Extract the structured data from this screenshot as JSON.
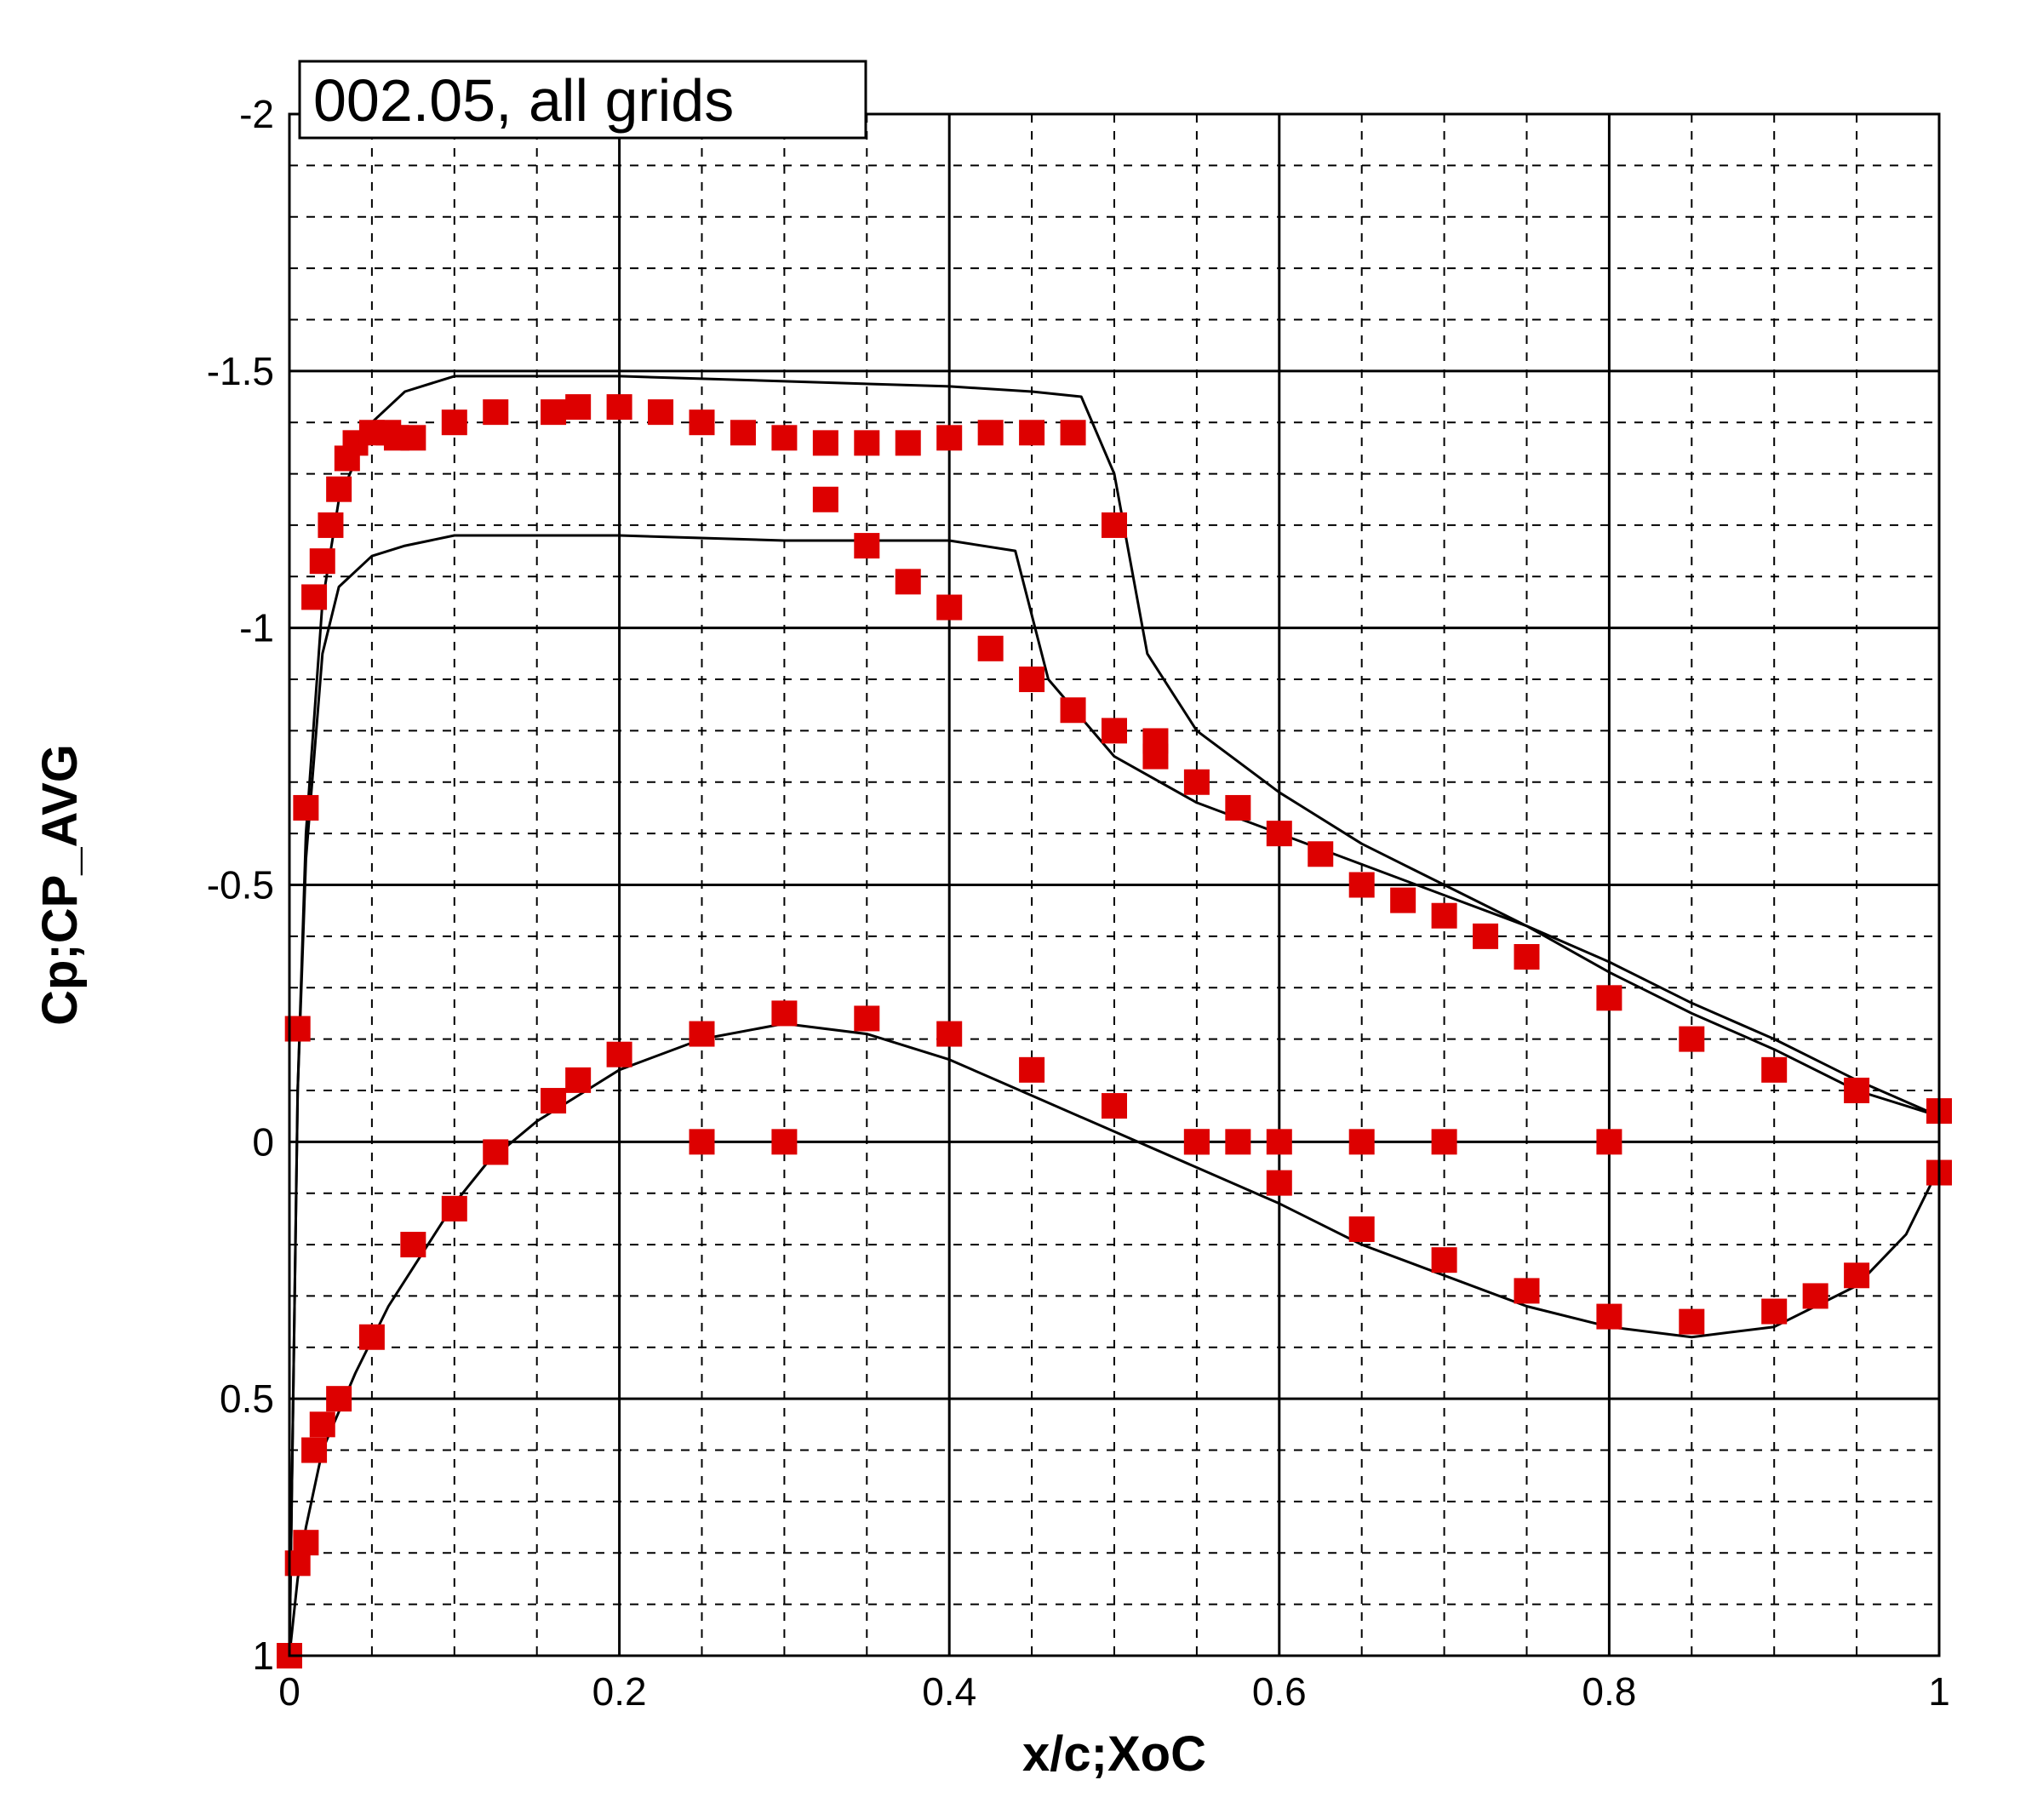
{
  "chart_data": {
    "type": "line",
    "title": "002.05, all grids",
    "xlabel": "x/c;XoC",
    "ylabel": "Cp;CP_AVG",
    "xlim": [
      0,
      1
    ],
    "ylim": [
      -2,
      1
    ],
    "y_inverted": true,
    "x_ticks": [
      "0",
      "0.2",
      "0.4",
      "0.6",
      "0.8",
      "1"
    ],
    "y_ticks": [
      "-2",
      "-1.5",
      "-1",
      "-0.5",
      "0",
      "0.5",
      "1"
    ],
    "grid": "major solid, minor dashed",
    "colors": {
      "lines": "#000000",
      "markers": "#dd0000"
    },
    "series": [
      {
        "name": "",
        "style": "lines",
        "role": "upper surface, sharp shock (representative)",
        "x": [
          0,
          0.005,
          0.01,
          0.02,
          0.03,
          0.05,
          0.07,
          0.1,
          0.15,
          0.2,
          0.3,
          0.4,
          0.45,
          0.48,
          0.5,
          0.52,
          0.55,
          0.6,
          0.65,
          0.7,
          0.75,
          0.8,
          0.85,
          0.9,
          0.95,
          1.0
        ],
        "y": [
          1.0,
          -0.1,
          -0.6,
          -1.05,
          -1.25,
          -1.4,
          -1.46,
          -1.49,
          -1.49,
          -1.49,
          -1.48,
          -1.47,
          -1.46,
          -1.45,
          -1.3,
          -0.95,
          -0.8,
          -0.68,
          -0.58,
          -0.5,
          -0.42,
          -0.33,
          -0.25,
          -0.18,
          -0.1,
          -0.05
        ]
      },
      {
        "name": "",
        "style": "lines",
        "role": "upper surface, lower plateau (representative)",
        "x": [
          0,
          0.005,
          0.01,
          0.02,
          0.03,
          0.05,
          0.07,
          0.1,
          0.2,
          0.3,
          0.4,
          0.44,
          0.46,
          0.5,
          0.55,
          0.6,
          0.65,
          0.7,
          0.75,
          0.8,
          0.85,
          0.9,
          0.95,
          1.0
        ],
        "y": [
          1.0,
          -0.1,
          -0.55,
          -0.95,
          -1.08,
          -1.14,
          -1.16,
          -1.18,
          -1.18,
          -1.17,
          -1.17,
          -1.15,
          -0.9,
          -0.75,
          -0.66,
          -0.6,
          -0.54,
          -0.48,
          -0.42,
          -0.35,
          -0.27,
          -0.2,
          -0.12,
          -0.05
        ]
      },
      {
        "name": "",
        "style": "lines",
        "role": "lower surface (representative)",
        "x": [
          0,
          0.005,
          0.01,
          0.02,
          0.04,
          0.06,
          0.08,
          0.1,
          0.12,
          0.15,
          0.18,
          0.2,
          0.25,
          0.3,
          0.35,
          0.4,
          0.45,
          0.5,
          0.55,
          0.6,
          0.65,
          0.7,
          0.75,
          0.8,
          0.85,
          0.9,
          0.95,
          0.98,
          1.0
        ],
        "y": [
          1.0,
          0.85,
          0.75,
          0.6,
          0.45,
          0.32,
          0.22,
          0.12,
          0.04,
          -0.04,
          -0.1,
          -0.14,
          -0.2,
          -0.23,
          -0.21,
          -0.16,
          -0.09,
          -0.02,
          0.05,
          0.12,
          0.2,
          0.26,
          0.32,
          0.36,
          0.38,
          0.36,
          0.28,
          0.18,
          0.05
        ]
      },
      {
        "name": "",
        "style": "markers",
        "role": "experiment, upper surface",
        "x": [
          0.0,
          0.005,
          0.01,
          0.015,
          0.02,
          0.025,
          0.03,
          0.035,
          0.04,
          0.05,
          0.06,
          0.065,
          0.075,
          0.1,
          0.125,
          0.16,
          0.175,
          0.2,
          0.225,
          0.25,
          0.275,
          0.3,
          0.325,
          0.35,
          0.375,
          0.4,
          0.425,
          0.45,
          0.475,
          0.5,
          0.525,
          0.55,
          0.575,
          0.6,
          0.625,
          0.65,
          0.675,
          0.7,
          0.725,
          0.75,
          0.8,
          0.85,
          0.9,
          0.95,
          1.0
        ],
        "y": [
          1.0,
          -0.22,
          -0.65,
          -1.06,
          -1.13,
          -1.2,
          -1.27,
          -1.33,
          -1.36,
          -1.38,
          -1.38,
          -1.37,
          -1.37,
          -1.4,
          -1.42,
          -1.42,
          -1.43,
          -1.43,
          -1.42,
          -1.4,
          -1.38,
          -1.37,
          -1.36,
          -1.36,
          -1.36,
          -1.37,
          -1.38,
          -1.38,
          -1.38,
          -1.2,
          -0.78,
          -0.7,
          -0.65,
          -0.6,
          -0.56,
          -0.5,
          -0.47,
          -0.44,
          -0.4,
          -0.36,
          -0.28,
          -0.2,
          -0.14,
          -0.1,
          -0.06
        ]
      },
      {
        "name": "",
        "style": "markers",
        "role": "experiment, lower surface",
        "x": [
          0.005,
          0.01,
          0.015,
          0.02,
          0.03,
          0.05,
          0.075,
          0.1,
          0.125,
          0.16,
          0.175,
          0.2,
          0.25,
          0.3,
          0.35,
          0.4,
          0.45,
          0.5,
          0.55,
          0.6,
          0.65,
          0.7,
          0.75,
          0.8,
          0.85,
          0.9,
          0.925,
          0.95
        ],
        "y": [
          0.82,
          0.78,
          0.6,
          0.55,
          0.5,
          0.38,
          0.2,
          0.13,
          0.02,
          -0.08,
          -0.12,
          -0.17,
          -0.21,
          -0.25,
          -0.24,
          -0.21,
          -0.14,
          -0.07,
          0.0,
          0.08,
          0.17,
          0.23,
          0.29,
          0.34,
          0.35,
          0.33,
          0.3,
          0.26
        ]
      },
      {
        "name": "",
        "style": "markers",
        "role": "experiment, second group",
        "x": [
          0.25,
          0.3,
          0.325,
          0.35,
          0.375,
          0.4,
          0.425,
          0.45,
          0.475,
          0.5,
          0.525,
          0.55,
          0.575,
          0.6,
          0.65,
          0.7,
          0.8,
          1.0
        ],
        "y": [
          0.0,
          0.0,
          -1.25,
          -1.16,
          -1.09,
          -1.04,
          -0.96,
          -0.9,
          -0.84,
          -0.8,
          -0.75,
          0.0,
          0.0,
          0.0,
          0.0,
          0.0,
          0.0,
          0.06
        ]
      }
    ]
  }
}
